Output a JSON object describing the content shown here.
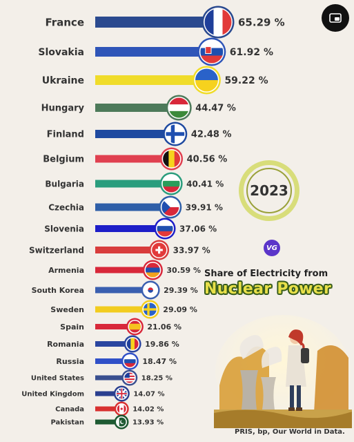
{
  "chart_data": {
    "type": "bar",
    "orientation": "horizontal",
    "title": "Nuclear Power",
    "subtitle": "Share of Electricity from",
    "year": "2023",
    "unit": "%",
    "categories": [
      "France",
      "Slovakia",
      "Ukraine",
      "Hungary",
      "Finland",
      "Belgium",
      "Bulgaria",
      "Czechia",
      "Slovenia",
      "Switzerland",
      "Armenia",
      "South Korea",
      "Sweden",
      "Spain",
      "Romania",
      "Russia",
      "United States",
      "United Kingdom",
      "Canada",
      "Pakistan"
    ],
    "values": [
      65.29,
      61.92,
      59.22,
      44.47,
      42.48,
      40.56,
      40.41,
      39.91,
      37.06,
      33.97,
      30.59,
      29.39,
      29.09,
      21.06,
      19.86,
      18.47,
      18.25,
      14.07,
      14.02,
      13.93
    ],
    "value_labels": [
      "65.29 %",
      "61.92 %",
      "59.22 %",
      "44.47 %",
      "42.48 %",
      "40.56 %",
      "40.41 %",
      "39.91 %",
      "37.06 %",
      "33.97 %",
      "30.59 %",
      "29.39 %",
      "29.09 %",
      "21.06 %",
      "19.86 %",
      "18.47 %",
      "18.25 %",
      "14.07 %",
      "14.02 %",
      "13.93 %"
    ],
    "bar_colors": [
      "#2b4a8f",
      "#2f55b8",
      "#f0dc2a",
      "#4d7a5a",
      "#1f4aa0",
      "#e04050",
      "#2a9d7d",
      "#2f5fa8",
      "#1e1ec8",
      "#d83c3c",
      "#d8283a",
      "#3a5fb0",
      "#f2cc1f",
      "#d8283a",
      "#2a45a0",
      "#3050c8",
      "#3a4f8f",
      "#2a3f8f",
      "#d83030",
      "#1e5a32"
    ],
    "flags": [
      "fr",
      "sk",
      "ua",
      "hu",
      "fi",
      "be",
      "bg",
      "cz",
      "si",
      "ch",
      "am",
      "kr",
      "se",
      "es",
      "ro",
      "ru",
      "us",
      "gb",
      "ca",
      "pk"
    ],
    "source": "PRIS, bp, Our World in Data.",
    "logo": "VG"
  },
  "ui": {
    "corner_icon": "picture-in-picture-icon"
  }
}
